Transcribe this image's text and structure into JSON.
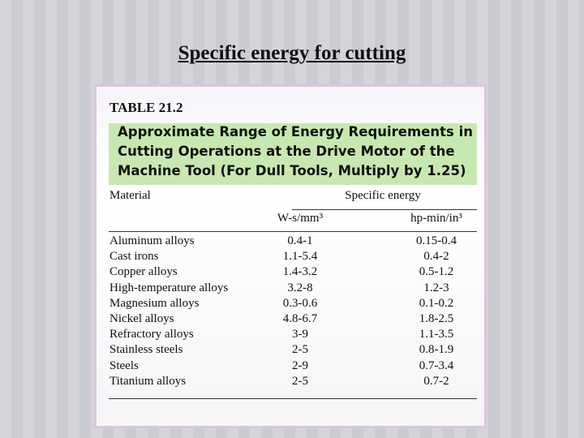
{
  "header": {
    "title": "Specific energy for cutting"
  },
  "table": {
    "label": "TABLE 21.2",
    "caption_lines": [
      "Approximate Range of Energy Requirements in",
      "Cutting Operations at the Drive Motor of the",
      "Machine Tool (For Dull Tools, Multiply by 1.25)"
    ],
    "column_header": "Material",
    "group_header": "Specific energy",
    "unit_headers": [
      "W-s/mm³",
      "hp-min/in³"
    ],
    "rows": [
      [
        "Aluminum alloys",
        "0.4-1",
        "0.15-0.4"
      ],
      [
        "Cast irons",
        "1.1-5.4",
        "0.4-2"
      ],
      [
        "Copper alloys",
        "1.4-3.2",
        "0.5-1.2"
      ],
      [
        "High-temperature alloys",
        "3.2-8",
        "1.2-3"
      ],
      [
        "Magnesium alloys",
        "0.3-0.6",
        "0.1-0.2"
      ],
      [
        "Nickel alloys",
        "4.8-6.7",
        "1.8-2.5"
      ],
      [
        "Refractory alloys",
        "3-9",
        "1.1-3.5"
      ],
      [
        "Stainless steels",
        "2-5",
        "0.8-1.9"
      ],
      [
        "Steels",
        "2-9",
        "0.7-3.4"
      ],
      [
        "Titanium alloys",
        "2-5",
        "0.7-2"
      ]
    ]
  }
}
